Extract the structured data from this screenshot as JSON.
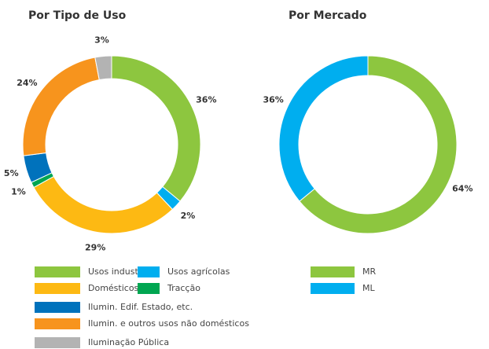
{
  "chart_data": [
    {
      "type": "donut",
      "title": "Por Tipo de Uso",
      "categories": [
        "Usos industriais",
        "Usos agrícolas",
        "Domésticos",
        "Tracção",
        "Ilumin. Edif. Estado, etc.",
        "Ilumin. e outros usos não domésticos",
        "Iluminação Pública"
      ],
      "values": [
        36,
        2,
        29,
        1,
        5,
        24,
        3
      ],
      "value_labels": [
        "36%",
        "2%",
        "29%",
        "1%",
        "5%",
        "24%",
        "3%"
      ],
      "colors": [
        "#8dc63f",
        "#00aeef",
        "#fdb913",
        "#00a651",
        "#0072bc",
        "#f7941d",
        "#b3b3b3"
      ]
    },
    {
      "type": "donut",
      "title": "Por Mercado",
      "categories": [
        "MR",
        "ML"
      ],
      "values": [
        64,
        36
      ],
      "value_labels": [
        "64%",
        "36%"
      ],
      "colors": [
        "#8dc63f",
        "#00aeef"
      ]
    }
  ]
}
